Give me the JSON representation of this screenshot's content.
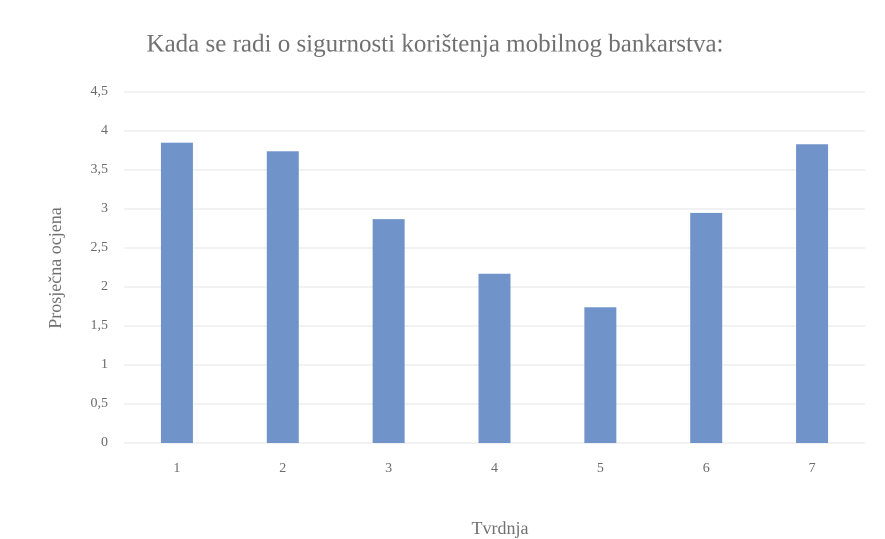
{
  "chart_data": {
    "type": "bar",
    "title": "Kada se radi o sigurnosti korištenja mobilnog bankarstva:",
    "x_label": "Tvrdnja",
    "y_label": "Prosječna ocjena",
    "categories": [
      "1",
      "2",
      "3",
      "4",
      "5",
      "6",
      "7"
    ],
    "values": [
      3.85,
      3.74,
      2.87,
      2.17,
      1.74,
      2.95,
      3.83
    ],
    "color": "#7093c9",
    "ylim": [
      0,
      4.5
    ],
    "yticks": [
      0,
      {
        "value": 0.5,
        "label": "0,5"
      },
      1,
      {
        "value": 1.5,
        "label": "1,5"
      },
      2,
      {
        "value": 2.5,
        "label": "2,5"
      },
      3,
      {
        "value": 3.5,
        "label": "3,5"
      },
      4,
      {
        "value": 4.5,
        "label": "4,5"
      }
    ],
    "grid": true
  }
}
